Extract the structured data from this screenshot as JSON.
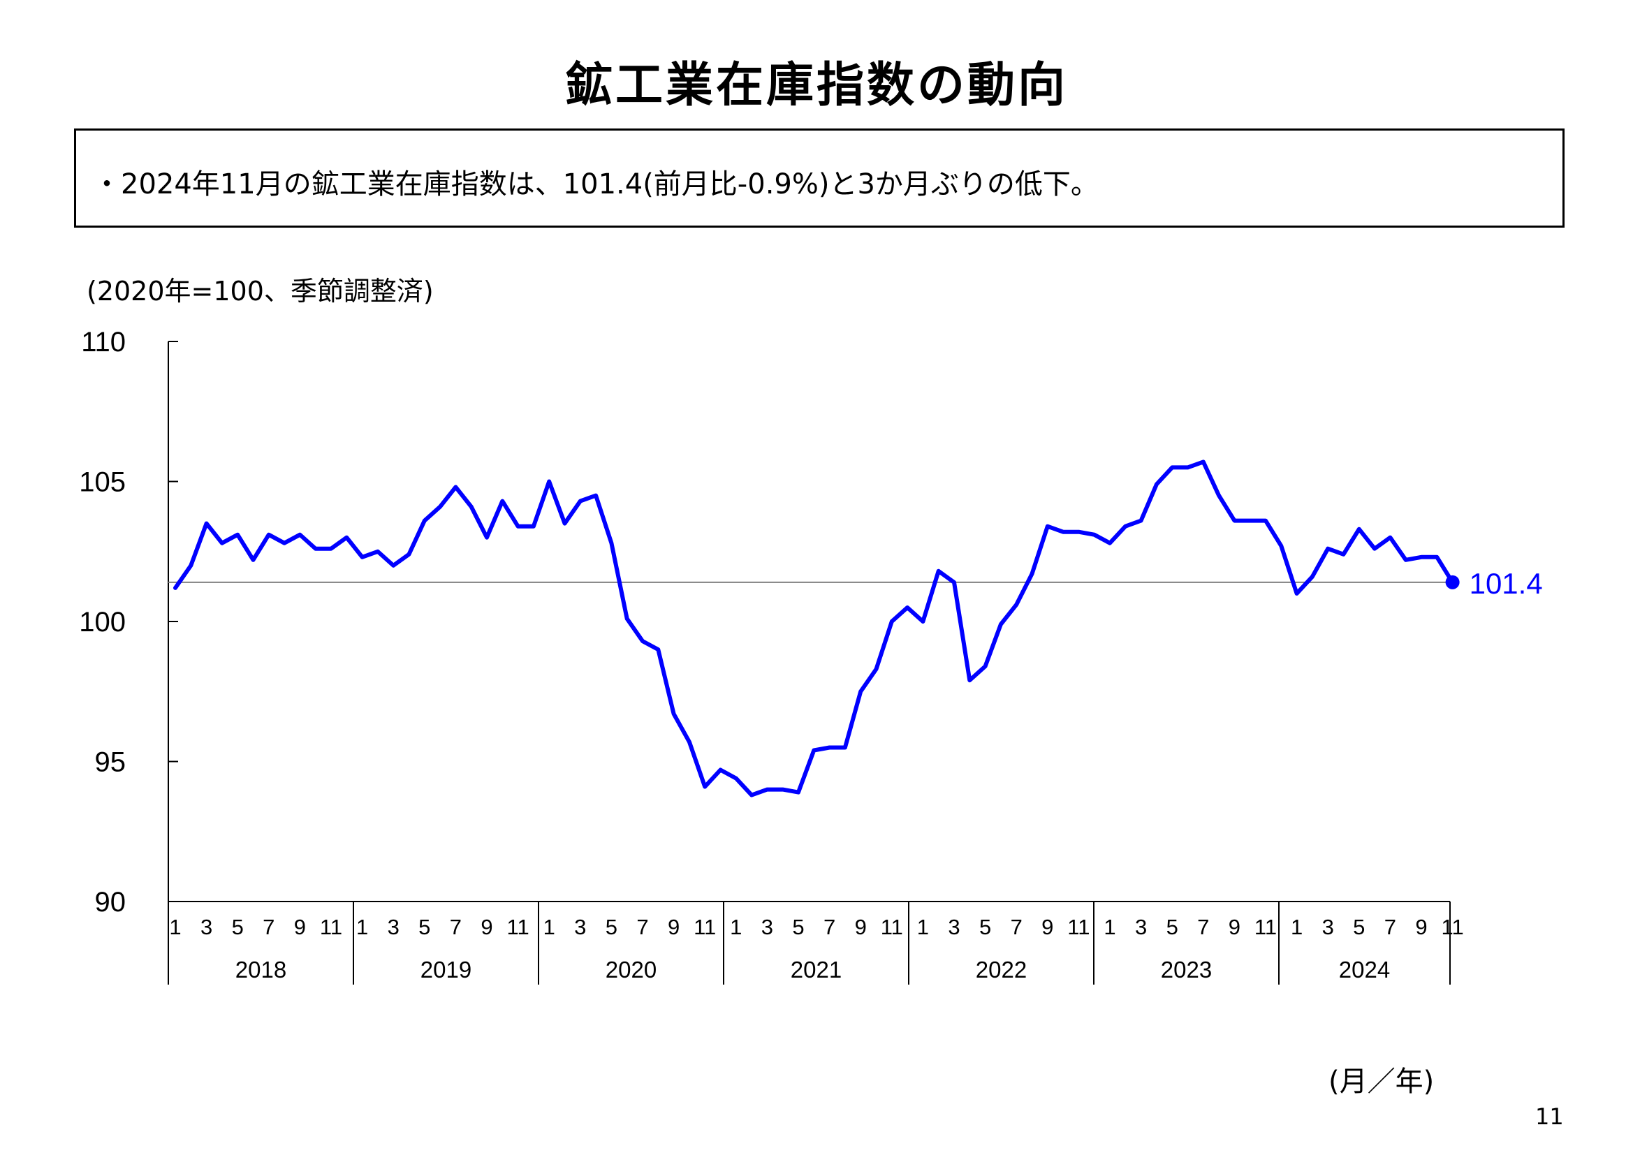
{
  "title": "鉱工業在庫指数の動向",
  "summary": "・2024年11月の鉱工業在庫指数は、101.4(前月比-0.9%)と3か月ぶりの低下。",
  "unit_note": "(2020年=100、季節調整済)",
  "x_axis_unit": "(月／年)",
  "page_number": "11",
  "colors": {
    "series": "#0000ff",
    "reference_line": "#808080",
    "axis": "#000000"
  },
  "chart_data": {
    "type": "line",
    "title": "",
    "ylabel": "(2020年=100、季節調整済)",
    "xlabel": "(月／年)",
    "ylim": [
      90,
      110
    ],
    "yticks": [
      "90",
      "95",
      "100",
      "105",
      "110"
    ],
    "years": [
      "2018",
      "2019",
      "2020",
      "2021",
      "2022",
      "2023",
      "2024"
    ],
    "month_tick_labels": [
      "1",
      "3",
      "5",
      "7",
      "9",
      "11"
    ],
    "reference_line": 101.4,
    "end_label": "101.4",
    "legend": "none",
    "grid": false,
    "series": [
      {
        "values": [
          101.2,
          102.0,
          103.5,
          102.8,
          103.1,
          102.2,
          103.1,
          102.8,
          103.1,
          102.6,
          102.6,
          103.0,
          102.3,
          102.5,
          102.0,
          102.4,
          103.6,
          104.1,
          104.8,
          104.1,
          103.0,
          104.3,
          103.4,
          103.4,
          105.0,
          103.5,
          104.3,
          104.5,
          102.8,
          100.1,
          99.3,
          99.0,
          96.7,
          95.7,
          94.1,
          94.7,
          94.4,
          93.8,
          94.0,
          94.0,
          93.9,
          95.4,
          95.5,
          95.5,
          97.5,
          98.3,
          100.0,
          100.5,
          100.0,
          101.8,
          101.4,
          97.9,
          98.4,
          99.9,
          100.6,
          101.7,
          103.4,
          103.2,
          103.2,
          103.1,
          102.8,
          103.4,
          103.6,
          104.9,
          105.5,
          105.5,
          105.7,
          104.5,
          103.6,
          103.6,
          103.6,
          102.7,
          101.0,
          101.6,
          102.6,
          102.4,
          103.3,
          102.6,
          103.0,
          102.2,
          102.3,
          102.3,
          101.4
        ]
      }
    ]
  }
}
